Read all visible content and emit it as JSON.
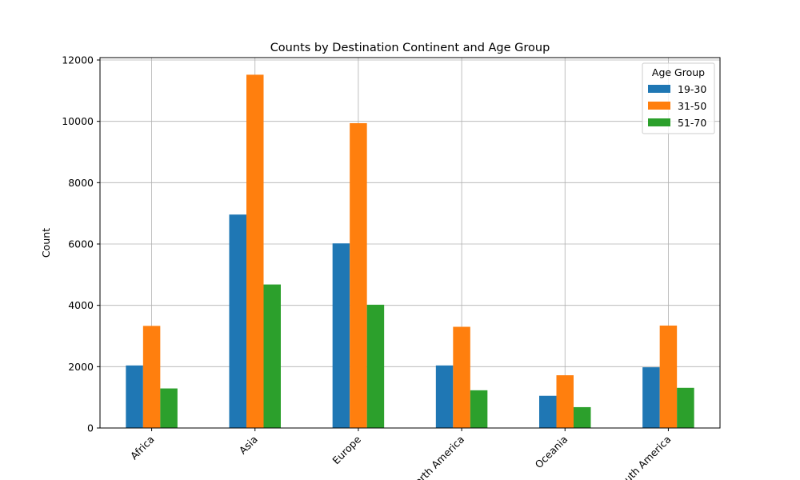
{
  "chart_data": {
    "type": "bar",
    "title": "Counts by Destination Continent and Age Group",
    "xlabel": "",
    "ylabel": "Count",
    "categories": [
      "Africa",
      "Asia",
      "Europe",
      "North America",
      "Oceania",
      "South America"
    ],
    "series": [
      {
        "name": "19-30",
        "color": "#1f77b4",
        "values": [
          2040,
          6960,
          6020,
          2040,
          1050,
          1980
        ]
      },
      {
        "name": "31-50",
        "color": "#ff7f0e",
        "values": [
          3330,
          11520,
          9940,
          3300,
          1720,
          3340
        ]
      },
      {
        "name": "51-70",
        "color": "#2ca02c",
        "values": [
          1290,
          4680,
          4020,
          1230,
          680,
          1310
        ]
      }
    ],
    "ylim": [
      0,
      12000
    ],
    "yticks": [
      0,
      2000,
      4000,
      6000,
      8000,
      10000,
      12000
    ],
    "grid": true,
    "legend": {
      "title": "Age Group",
      "position": "top-right"
    }
  }
}
